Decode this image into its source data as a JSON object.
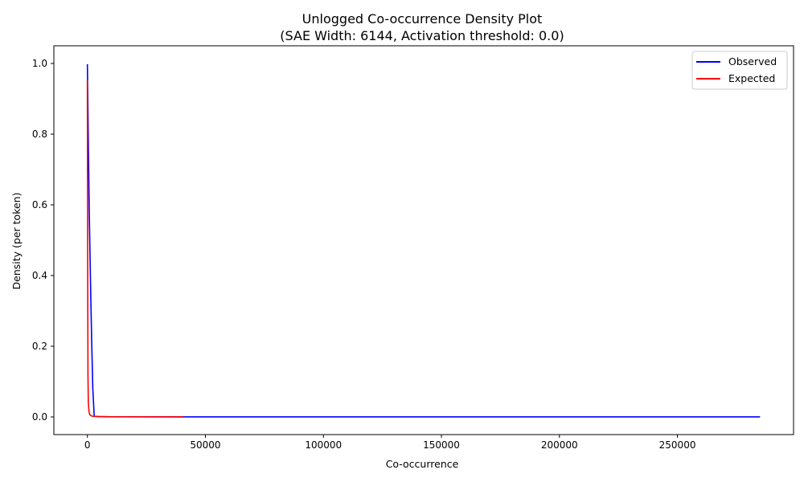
{
  "chart_data": {
    "type": "line",
    "title": "Unlogged Co-occurrence Density Plot",
    "subtitle": "(SAE Width: 6144, Activation threshold: 0.0)",
    "xlabel": "Co-occurrence",
    "ylabel": "Density (per token)",
    "xlim": [
      -14200,
      299200
    ],
    "ylim": [
      -0.05,
      1.05
    ],
    "x_ticks": [
      0,
      50000,
      100000,
      150000,
      200000,
      250000
    ],
    "x_tick_labels": [
      "0",
      "50000",
      "100000",
      "150000",
      "200000",
      "250000"
    ],
    "y_ticks": [
      0.0,
      0.2,
      0.4,
      0.6,
      0.8,
      1.0
    ],
    "y_tick_labels": [
      "0.0",
      "0.2",
      "0.4",
      "0.6",
      "0.8",
      "1.0"
    ],
    "grid": false,
    "legend_position": "top-right",
    "series": [
      {
        "name": "Observed",
        "color": "#0000ff",
        "x": [
          0,
          400,
          800,
          1300,
          1800,
          2300,
          2900,
          5000,
          10000,
          20000,
          40000,
          100000,
          200000,
          285000
        ],
        "y": [
          0.998,
          0.78,
          0.58,
          0.39,
          0.22,
          0.08,
          0.002,
          0.0008,
          0.0005,
          0.0003,
          0.0002,
          0.0001,
          0.0001,
          0.0001
        ]
      },
      {
        "name": "Expected",
        "color": "#ff0000",
        "x": [
          0,
          100,
          250,
          400,
          700,
          1000,
          2000,
          5000,
          10000,
          20000,
          40500
        ],
        "y": [
          0.952,
          0.5,
          0.12,
          0.04,
          0.015,
          0.006,
          0.002,
          0.001,
          0.0006,
          0.0003,
          0.0002
        ]
      }
    ]
  }
}
